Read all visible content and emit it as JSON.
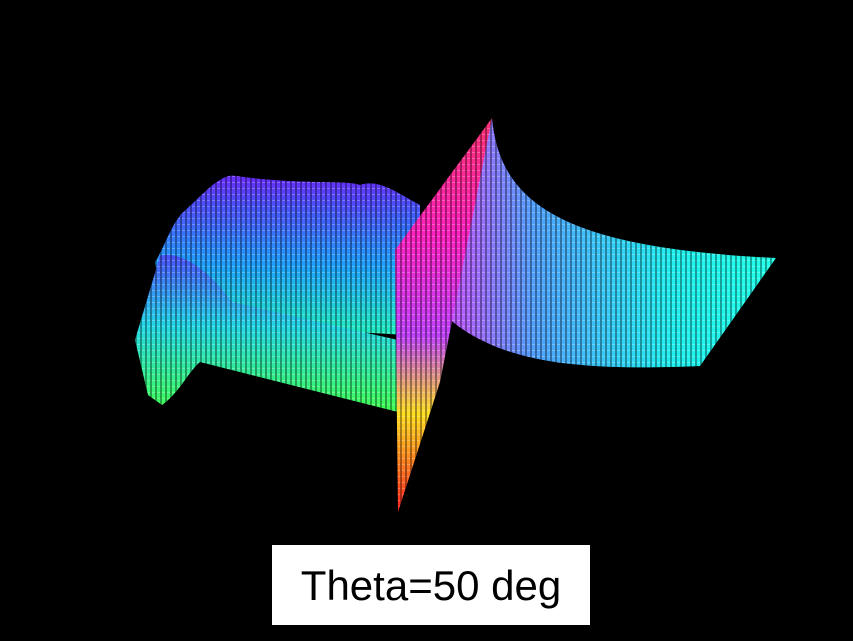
{
  "caption": "Theta=50 deg"
}
